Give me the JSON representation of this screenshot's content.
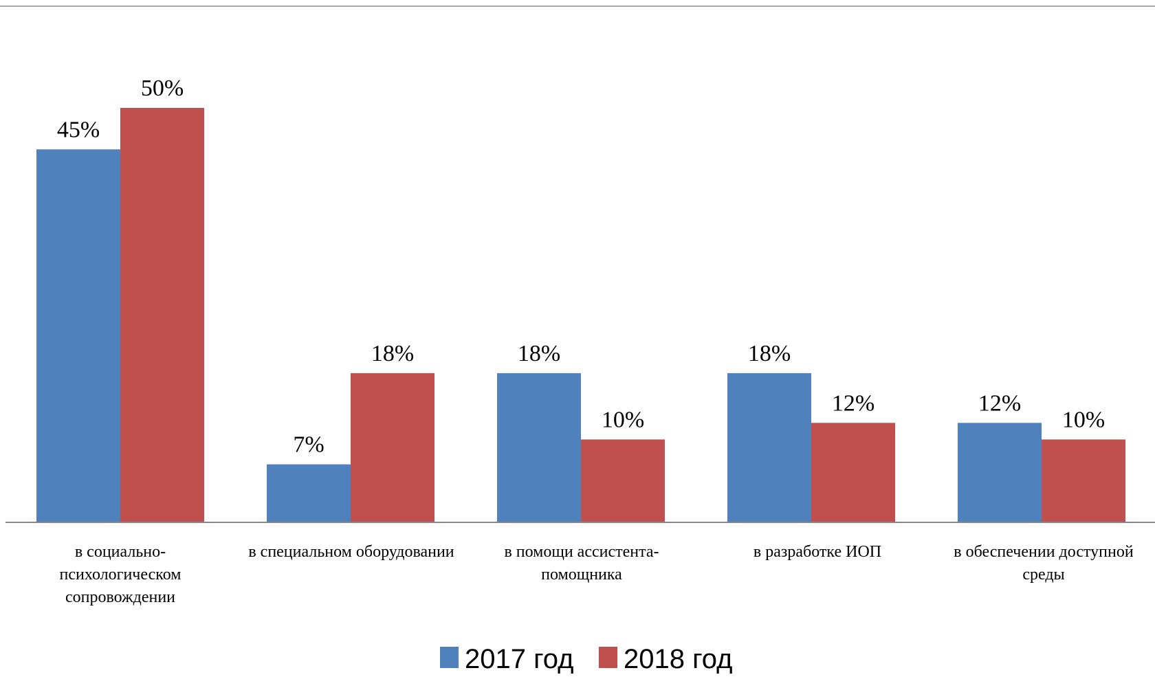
{
  "chart_data": {
    "type": "bar",
    "categories": [
      [
        "в социально-",
        "психологическом",
        "сопровождении"
      ],
      [
        "в специальном оборудовании"
      ],
      [
        "в помощи ассистента-",
        "помощника"
      ],
      [
        "в разработке ИОП"
      ],
      [
        "в обеспечении доступной",
        "среды"
      ]
    ],
    "series": [
      {
        "name": "2017 год",
        "color": "#4F81BD",
        "values": [
          45,
          7,
          18,
          18,
          12
        ],
        "labels": [
          "45%",
          "7%",
          "18%",
          "18%",
          "12%"
        ]
      },
      {
        "name": "2018 год",
        "color": "#C0504D",
        "values": [
          50,
          18,
          10,
          12,
          10
        ],
        "labels": [
          "50%",
          "18%",
          "10%",
          "12%",
          "10%"
        ]
      }
    ],
    "ylim": [
      0,
      50
    ],
    "grid": false,
    "legend_position": "bottom",
    "axis_color": "#868686"
  }
}
